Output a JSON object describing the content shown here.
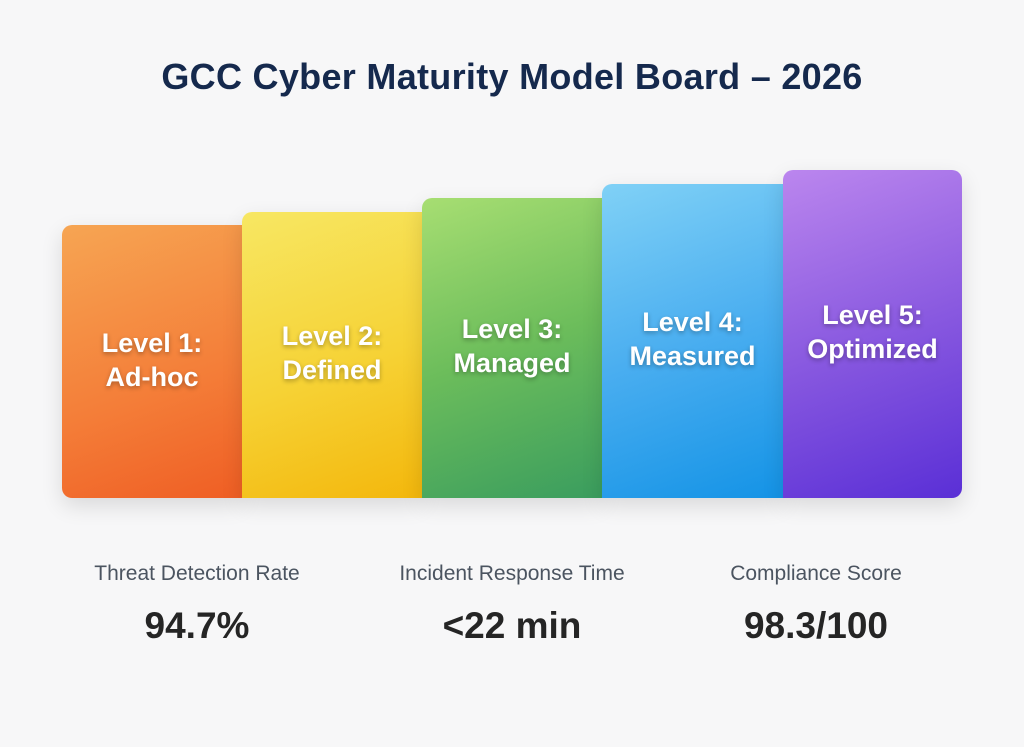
{
  "title": "GCC Cyber Maturity Model Board – 2026",
  "levels": [
    {
      "label": "Level 1:\nAd-hoc",
      "color": "#f47d38"
    },
    {
      "label": "Level 2:\nDefined",
      "color": "#f6d235"
    },
    {
      "label": "Level 3:\nManaged",
      "color": "#6cbd5b"
    },
    {
      "label": "Level 4:\nMeasured",
      "color": "#4aaef0"
    },
    {
      "label": "Level 5:\nOptimized",
      "color": "#8a5ae0"
    }
  ],
  "metrics": [
    {
      "label": "Threat Detection Rate",
      "value": "94.7%"
    },
    {
      "label": "Incident Response Time",
      "value": "<22 min"
    },
    {
      "label": "Compliance Score",
      "value": "98.3/100"
    }
  ]
}
